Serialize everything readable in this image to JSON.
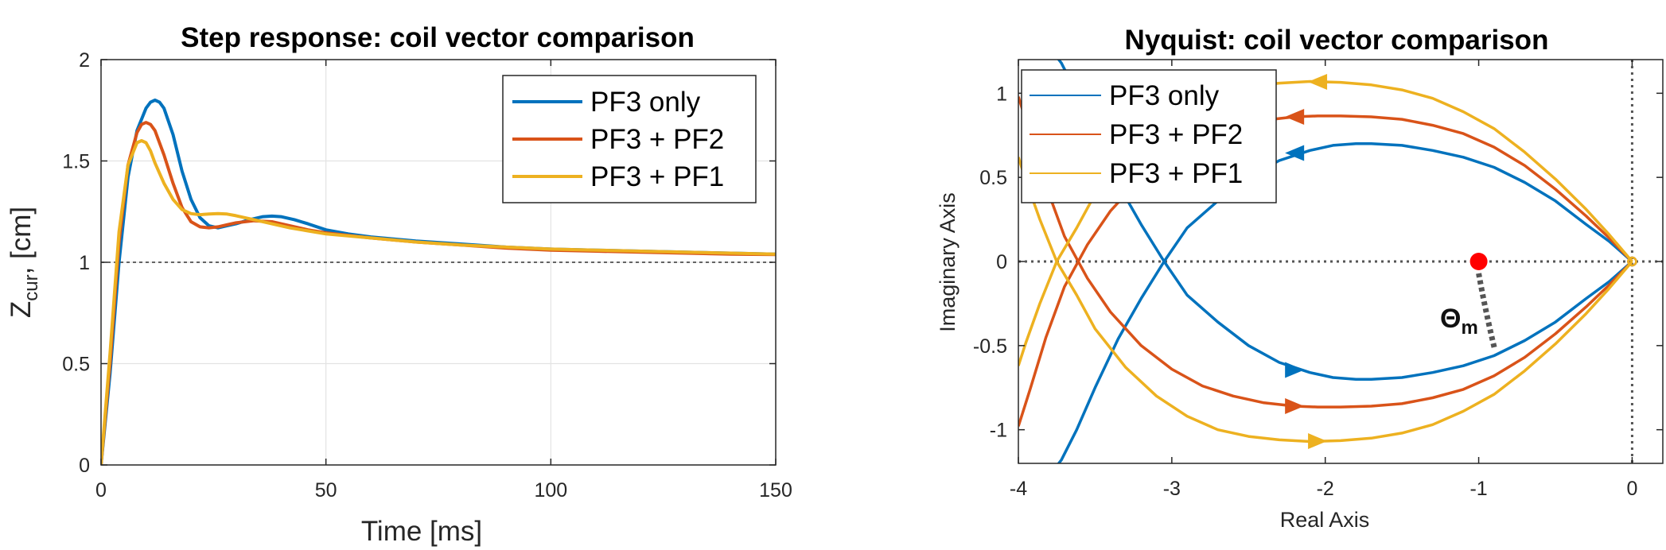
{
  "colors": {
    "pf3_only": "#0072BD",
    "pf3_pf2": "#D95319",
    "pf3_pf1": "#EDB120",
    "grid": "#e6e6e6",
    "axis": "#262626",
    "marker": "#ff0000"
  },
  "chart_data": [
    {
      "type": "line",
      "title": "Step response: coil vector comparison",
      "xlabel": "Time [ms]",
      "ylabel": {
        "main": "Z",
        "sub": "cur",
        "rest": ", [cm]"
      },
      "xlim": [
        0,
        150
      ],
      "ylim": [
        0,
        2
      ],
      "xticks": [
        0,
        50,
        100,
        150
      ],
      "yticks": [
        0,
        0.5,
        1,
        1.5,
        2
      ],
      "xtick_labels": [
        "0",
        "50",
        "100",
        "150"
      ],
      "ytick_labels": [
        "0",
        "0.5",
        "1",
        "1.5",
        "2"
      ],
      "grid": true,
      "legend_position": "top-right",
      "reference_line_y": 1,
      "series": [
        {
          "name": "PF3 only",
          "color": "#0072BD",
          "x": [
            0,
            2,
            4,
            6,
            8,
            10,
            11,
            12,
            13,
            14,
            16,
            18,
            20,
            22,
            24,
            26,
            28,
            30,
            33,
            36,
            38,
            40,
            43,
            46,
            50,
            55,
            60,
            70,
            80,
            90,
            100,
            110,
            120,
            130,
            140,
            150
          ],
          "y": [
            0,
            0.45,
            1.0,
            1.42,
            1.65,
            1.76,
            1.79,
            1.8,
            1.79,
            1.76,
            1.63,
            1.45,
            1.31,
            1.22,
            1.18,
            1.17,
            1.18,
            1.19,
            1.21,
            1.225,
            1.228,
            1.225,
            1.21,
            1.19,
            1.16,
            1.14,
            1.125,
            1.105,
            1.09,
            1.075,
            1.065,
            1.06,
            1.055,
            1.05,
            1.045,
            1.04
          ]
        },
        {
          "name": "PF3 + PF2",
          "color": "#D95319",
          "x": [
            0,
            2,
            4,
            6,
            8,
            9,
            10,
            11,
            12,
            14,
            16,
            18,
            20,
            22,
            24,
            26,
            28,
            30,
            34,
            38,
            42,
            46,
            50,
            60,
            70,
            80,
            90,
            100,
            110,
            120,
            130,
            140,
            150
          ],
          "y": [
            0,
            0.5,
            1.1,
            1.48,
            1.64,
            1.68,
            1.69,
            1.68,
            1.65,
            1.53,
            1.39,
            1.27,
            1.2,
            1.175,
            1.17,
            1.175,
            1.185,
            1.195,
            1.205,
            1.2,
            1.18,
            1.16,
            1.145,
            1.12,
            1.1,
            1.085,
            1.07,
            1.06,
            1.055,
            1.05,
            1.045,
            1.04,
            1.038
          ]
        },
        {
          "name": "PF3 + PF1",
          "color": "#EDB120",
          "x": [
            0,
            2,
            4,
            6,
            8,
            9,
            10,
            11,
            12,
            14,
            16,
            18,
            20,
            22,
            24,
            26,
            28,
            30,
            34,
            38,
            42,
            46,
            50,
            60,
            70,
            80,
            90,
            100,
            110,
            120,
            130,
            140,
            150
          ],
          "y": [
            0,
            0.55,
            1.15,
            1.48,
            1.59,
            1.6,
            1.59,
            1.55,
            1.49,
            1.39,
            1.31,
            1.26,
            1.24,
            1.235,
            1.238,
            1.24,
            1.238,
            1.23,
            1.21,
            1.19,
            1.17,
            1.155,
            1.14,
            1.12,
            1.1,
            1.085,
            1.075,
            1.065,
            1.06,
            1.055,
            1.05,
            1.045,
            1.04
          ]
        }
      ]
    },
    {
      "type": "line",
      "title": "Nyquist: coil vector comparison",
      "xlabel": "Real Axis",
      "ylabel": "Imaginary Axis",
      "xlim": [
        -4,
        0.2
      ],
      "ylim": [
        -1.2,
        1.2
      ],
      "xticks": [
        -4,
        -3,
        -2,
        -1,
        0
      ],
      "yticks": [
        -1,
        -0.5,
        0,
        0.5,
        1
      ],
      "xtick_labels": [
        "-4",
        "-3",
        "-2",
        "-1",
        "0"
      ],
      "ytick_labels": [
        "-1",
        "-0.5",
        "0",
        "0.5",
        "1"
      ],
      "grid": false,
      "legend_position": "top-left",
      "reference_lines": {
        "y": 0,
        "x": 0
      },
      "critical_point": {
        "x": -1,
        "y": 0
      },
      "annotation": {
        "main": "Θ",
        "sub": "m"
      },
      "series": [
        {
          "name": "PF3 only",
          "color": "#0072BD",
          "x": [
            0,
            -0.15,
            -0.3,
            -0.5,
            -0.7,
            -0.9,
            -1.1,
            -1.3,
            -1.5,
            -1.7,
            -1.8,
            -1.95,
            -2.1,
            -2.3,
            -2.5,
            -2.7,
            -2.9,
            -3.05,
            -3.2,
            -3.35,
            -3.5,
            -3.62,
            -3.72,
            -3.78
          ],
          "y": [
            0,
            0.12,
            0.22,
            0.36,
            0.47,
            0.56,
            0.62,
            0.66,
            0.69,
            0.7,
            0.7,
            0.69,
            0.66,
            0.6,
            0.5,
            0.36,
            0.2,
            0.0,
            -0.22,
            -0.46,
            -0.75,
            -1.0,
            -1.18,
            -1.25
          ],
          "arrows": [
            {
              "x": -2.2,
              "y": 0.645
            },
            {
              "x": -2.2,
              "y": -0.645
            }
          ]
        },
        {
          "name": "PF3 + PF2",
          "color": "#D95319",
          "x": [
            0,
            -0.15,
            -0.3,
            -0.5,
            -0.7,
            -0.9,
            -1.1,
            -1.3,
            -1.5,
            -1.7,
            -1.9,
            -2.05,
            -2.2,
            -2.4,
            -2.6,
            -2.8,
            -3.0,
            -3.2,
            -3.4,
            -3.55,
            -3.7,
            -3.82,
            -3.92,
            -4.0
          ],
          "y": [
            0,
            0.14,
            0.27,
            0.43,
            0.57,
            0.68,
            0.76,
            0.81,
            0.845,
            0.86,
            0.865,
            0.865,
            0.86,
            0.84,
            0.8,
            0.74,
            0.64,
            0.5,
            0.3,
            0.1,
            -0.15,
            -0.45,
            -0.75,
            -0.98
          ],
          "arrows": [
            {
              "x": -2.2,
              "y": 0.86
            },
            {
              "x": -2.2,
              "y": -0.86
            }
          ]
        },
        {
          "name": "PF3 + PF1",
          "color": "#EDB120",
          "x": [
            0,
            -0.15,
            -0.3,
            -0.5,
            -0.7,
            -0.9,
            -1.1,
            -1.3,
            -1.5,
            -1.7,
            -1.9,
            -2.1,
            -2.3,
            -2.5,
            -2.7,
            -2.9,
            -3.1,
            -3.3,
            -3.5,
            -3.62,
            -3.75,
            -3.86,
            -3.95,
            -4.0
          ],
          "y": [
            0,
            0.16,
            0.31,
            0.49,
            0.65,
            0.79,
            0.89,
            0.97,
            1.02,
            1.05,
            1.065,
            1.07,
            1.06,
            1.04,
            1.0,
            0.92,
            0.8,
            0.63,
            0.4,
            0.2,
            0.0,
            -0.25,
            -0.48,
            -0.62
          ],
          "arrows": [
            {
              "x": -2.05,
              "y": 1.068
            },
            {
              "x": -2.05,
              "y": -1.068
            }
          ]
        }
      ]
    }
  ]
}
